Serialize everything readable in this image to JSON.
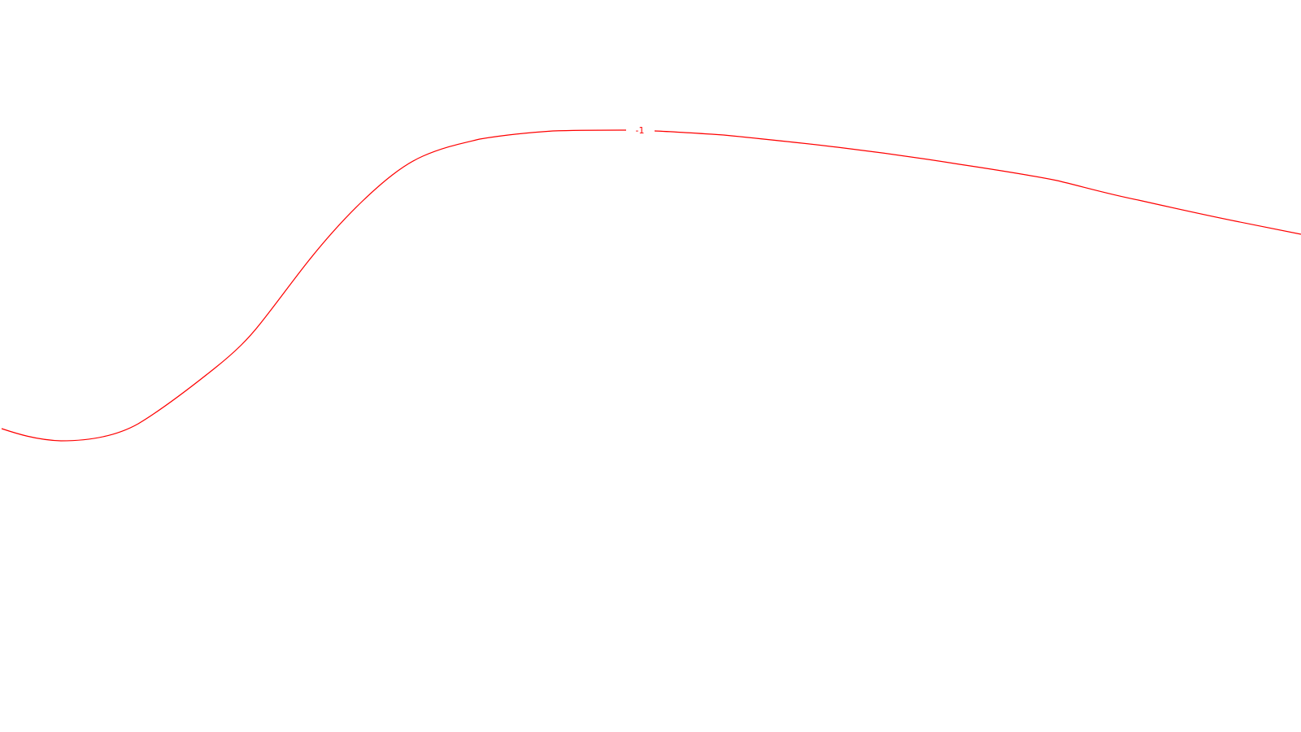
{
  "contour": {
    "label": "-1",
    "color": "#ff0000"
  }
}
